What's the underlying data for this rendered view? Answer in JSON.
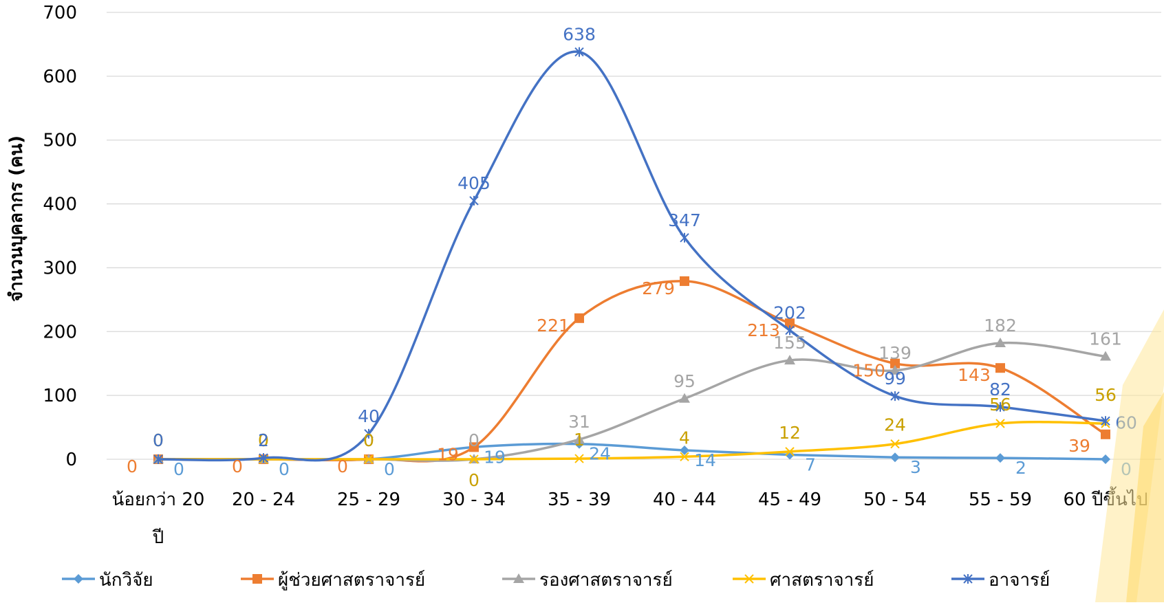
{
  "chart_data": {
    "type": "line",
    "title": "",
    "xlabel": "",
    "ylabel": "จำนวนบุคลากร (คน)",
    "ylim": [
      0,
      700
    ],
    "yticks": [
      0,
      100,
      200,
      300,
      400,
      500,
      600,
      700
    ],
    "grid": true,
    "legend_position": "bottom",
    "smooth": true,
    "categories": [
      "น้อยกว่า 20 ปี",
      "20 - 24",
      "25 - 29",
      "30 - 34",
      "35 - 39",
      "40 - 44",
      "45 - 49",
      "50 - 54",
      "55 - 59",
      "60 ปีขึ้นไป"
    ],
    "series": [
      {
        "name": "นักวิจัย",
        "color": "#5B9BD5",
        "marker": "diamond",
        "values": [
          0,
          0,
          0,
          19,
          24,
          14,
          7,
          3,
          2,
          0
        ]
      },
      {
        "name": "ผู้ช่วยศาสตราจารย์",
        "color": "#ED7D31",
        "marker": "square",
        "values": [
          0,
          0,
          0,
          19,
          221,
          279,
          213,
          150,
          143,
          39
        ]
      },
      {
        "name": "รองศาสตราจารย์",
        "color": "#A5A5A5",
        "marker": "triangle",
        "values": [
          0,
          0,
          0,
          0,
          31,
          95,
          155,
          139,
          182,
          161
        ]
      },
      {
        "name": "ศาสตราจารย์",
        "color": "#FFC000",
        "marker": "x",
        "values": [
          0,
          0,
          0,
          0,
          1,
          4,
          12,
          24,
          56,
          56
        ]
      },
      {
        "name": "อาจารย์",
        "color": "#4472C4",
        "marker": "star",
        "values": [
          0,
          2,
          40,
          405,
          638,
          347,
          202,
          99,
          82,
          60
        ]
      }
    ]
  }
}
